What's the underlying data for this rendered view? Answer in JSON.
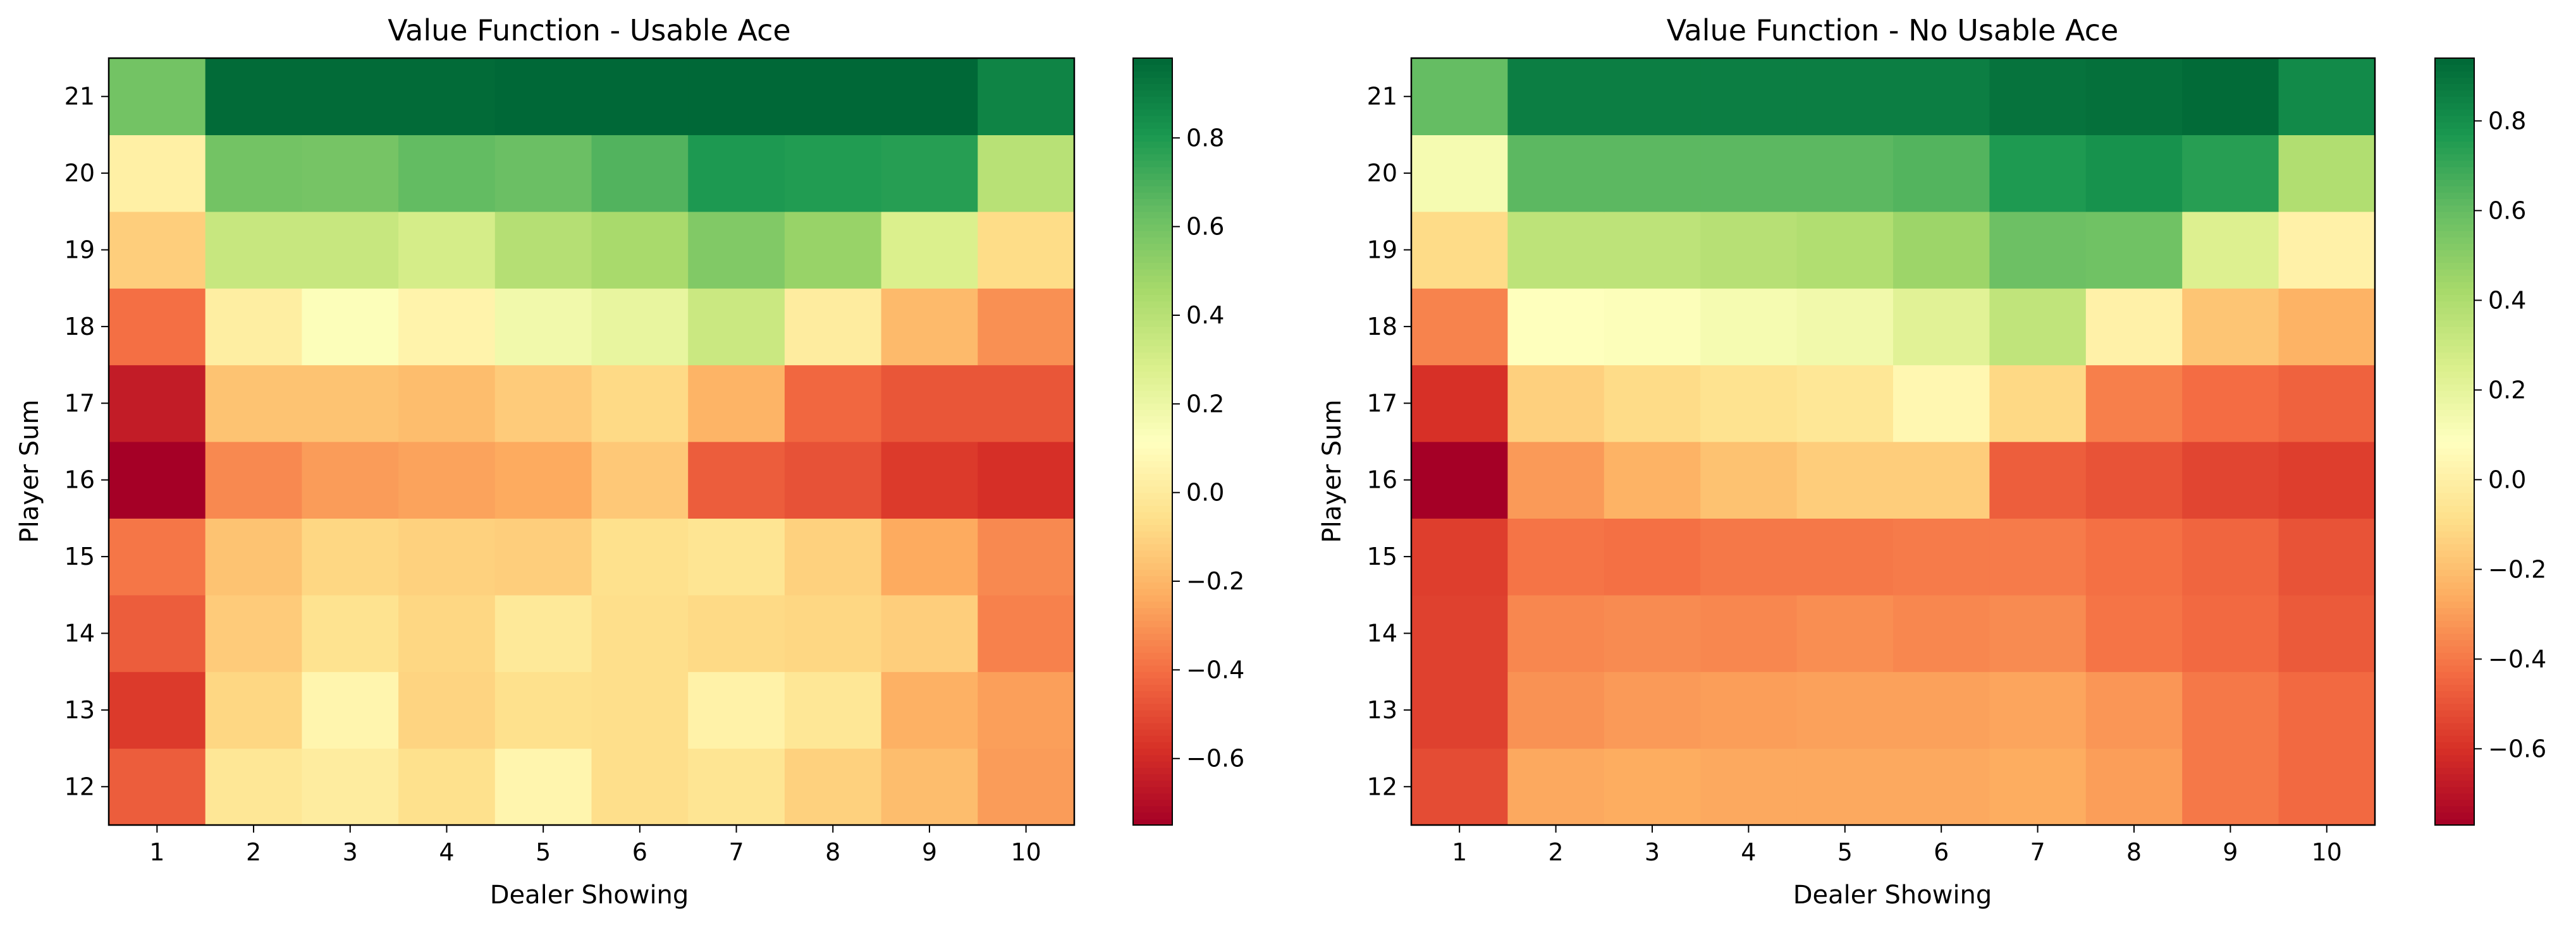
{
  "chart_data": [
    {
      "type": "heatmap",
      "title": "Value Function - Usable Ace",
      "xlabel": "Dealer Showing",
      "ylabel": "Player Sum",
      "x": [
        1,
        2,
        3,
        4,
        5,
        6,
        7,
        8,
        9,
        10
      ],
      "y": [
        12,
        13,
        14,
        15,
        16,
        17,
        18,
        19,
        20,
        21
      ],
      "colormap": "RdYlGn",
      "colorbar": {
        "vmin": -0.75,
        "vmax": 0.98,
        "ticks": [
          0.8,
          0.6,
          0.4,
          0.2,
          0.0,
          -0.2,
          -0.4,
          -0.6
        ],
        "tick_labels": [
          "0.8",
          "0.6",
          "0.4",
          "0.2",
          "0.0",
          "−0.2",
          "−0.4",
          "−0.6"
        ]
      },
      "values": [
        [
          -0.45,
          -0.02,
          0.01,
          -0.05,
          0.06,
          -0.06,
          -0.03,
          -0.11,
          -0.18,
          -0.28
        ],
        [
          -0.55,
          -0.09,
          0.06,
          -0.1,
          -0.05,
          -0.06,
          0.04,
          -0.02,
          -0.22,
          -0.27
        ],
        [
          -0.45,
          -0.13,
          -0.04,
          -0.09,
          -0.01,
          -0.06,
          -0.08,
          -0.09,
          -0.12,
          -0.35
        ],
        [
          -0.38,
          -0.16,
          -0.09,
          -0.11,
          -0.12,
          -0.05,
          -0.03,
          -0.11,
          -0.24,
          -0.33
        ],
        [
          -0.75,
          -0.33,
          -0.28,
          -0.26,
          -0.24,
          -0.14,
          -0.45,
          -0.48,
          -0.55,
          -0.58
        ],
        [
          -0.65,
          -0.16,
          -0.16,
          -0.18,
          -0.13,
          -0.08,
          -0.21,
          -0.42,
          -0.47,
          -0.47
        ],
        [
          -0.4,
          0.02,
          0.13,
          0.05,
          0.18,
          0.22,
          0.34,
          0.01,
          -0.19,
          -0.31
        ],
        [
          -0.12,
          0.35,
          0.35,
          0.3,
          0.41,
          0.45,
          0.56,
          0.5,
          0.28,
          -0.07
        ],
        [
          0.03,
          0.6,
          0.59,
          0.64,
          0.62,
          0.68,
          0.8,
          0.79,
          0.78,
          0.4
        ],
        [
          0.6,
          0.97,
          0.97,
          0.97,
          0.98,
          0.98,
          0.98,
          0.98,
          0.98,
          0.88
        ]
      ]
    },
    {
      "type": "heatmap",
      "title": "Value Function - No Usable Ace",
      "xlabel": "Dealer Showing",
      "ylabel": "Player Sum",
      "x": [
        1,
        2,
        3,
        4,
        5,
        6,
        7,
        8,
        9,
        10
      ],
      "y": [
        12,
        13,
        14,
        15,
        16,
        17,
        18,
        19,
        20,
        21
      ],
      "colormap": "RdYlGn",
      "colorbar": {
        "vmin": -0.77,
        "vmax": 0.94,
        "ticks": [
          0.8,
          0.6,
          0.4,
          0.2,
          0.0,
          -0.2,
          -0.4,
          -0.6
        ],
        "tick_labels": [
          "0.8",
          "0.6",
          "0.4",
          "0.2",
          "0.0",
          "−0.2",
          "−0.4",
          "−0.6"
        ]
      },
      "values": [
        [
          -0.52,
          -0.27,
          -0.26,
          -0.27,
          -0.27,
          -0.27,
          -0.26,
          -0.3,
          -0.4,
          -0.44
        ],
        [
          -0.55,
          -0.33,
          -0.31,
          -0.3,
          -0.29,
          -0.29,
          -0.28,
          -0.32,
          -0.4,
          -0.44
        ],
        [
          -0.55,
          -0.36,
          -0.35,
          -0.36,
          -0.34,
          -0.36,
          -0.35,
          -0.41,
          -0.44,
          -0.48
        ],
        [
          -0.56,
          -0.41,
          -0.42,
          -0.4,
          -0.4,
          -0.39,
          -0.39,
          -0.42,
          -0.45,
          -0.5
        ],
        [
          -0.77,
          -0.31,
          -0.24,
          -0.19,
          -0.15,
          -0.15,
          -0.47,
          -0.5,
          -0.54,
          -0.56
        ],
        [
          -0.6,
          -0.14,
          -0.1,
          -0.07,
          -0.05,
          0.04,
          -0.11,
          -0.38,
          -0.43,
          -0.46
        ],
        [
          -0.37,
          0.09,
          0.1,
          0.13,
          0.15,
          0.22,
          0.34,
          0.01,
          -0.18,
          -0.24
        ],
        [
          -0.1,
          0.35,
          0.35,
          0.37,
          0.39,
          0.45,
          0.58,
          0.57,
          0.24,
          0.01
        ],
        [
          0.13,
          0.62,
          0.62,
          0.62,
          0.62,
          0.64,
          0.76,
          0.79,
          0.74,
          0.39
        ],
        [
          0.6,
          0.86,
          0.86,
          0.86,
          0.86,
          0.86,
          0.9,
          0.91,
          0.93,
          0.82
        ]
      ]
    }
  ]
}
